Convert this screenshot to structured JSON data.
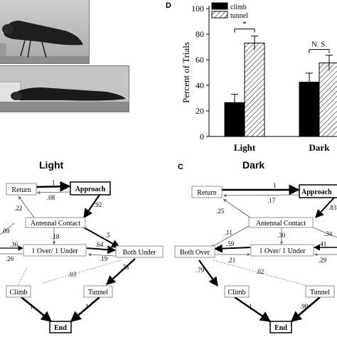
{
  "panel_letters": {
    "chart": "D",
    "dark": "C"
  },
  "panel_titles": {
    "light": "Light",
    "dark": "Dark"
  },
  "chart_data": {
    "type": "bar",
    "categories": [
      "Light",
      "Dark"
    ],
    "series": [
      {
        "name": "climb",
        "values": [
          26.5,
          42.5
        ],
        "errors": [
          6.5,
          7
        ],
        "color": "#000000"
      },
      {
        "name": "tunnel",
        "values": [
          73,
          57.5
        ],
        "errors": [
          5.5,
          6
        ],
        "color": "#ffffff",
        "pattern": "diagonal-hatch"
      }
    ],
    "ylabel": "Percent of Trials",
    "ylim": [
      0,
      100
    ],
    "yticks": [
      0,
      20,
      40,
      60,
      80,
      100
    ],
    "xtick_labels": [
      "Light",
      "Dark"
    ],
    "legend_placement": "top-left",
    "significance": [
      "*",
      "N. S."
    ]
  },
  "light_flow": {
    "nodes": {
      "return": "Return",
      "approach": "Approach",
      "antennal_contact": "Antennal Contact",
      "one_over_one_under": "1 Over/ 1 Under",
      "both_under": "Both Under",
      "climb": "Climb",
      "tunnel": "Tunnel",
      "end": "End"
    },
    "probabilities": {
      "return_to_approach": "1",
      "approach_to_return": ".08",
      "approach_to_contact": ".92",
      "contact_to_return": ".22",
      "contact_to_mixed": ".18",
      "contact_to_both_under": ".5",
      "left_top": ".09",
      "left_to_mixed": ".36",
      "mixed_to_left": ".26",
      "mixed_to_both_under": ".64",
      "both_under_to_mixed": ".19",
      "dashed_cross": ".03",
      "both_under_to_tunnel": ".78",
      "climb_to_end": "1",
      "tunnel_to_end": "1"
    }
  },
  "dark_flow": {
    "nodes": {
      "return": "Return",
      "approach": "Approach",
      "antennal_contact": "Antennal Contact",
      "both_over": "Both Over",
      "one_over_one_under": "1 Over/ 1 Under",
      "climb": "Climb",
      "tunnel": "Tunnel",
      "end": "End"
    },
    "probabilities": {
      "return_to_approach": "1",
      "approach_to_return": ".17",
      "approach_to_contact": ".83",
      "contact_to_return": ".25",
      "contact_to_both_over": ".11",
      "contact_to_mixed": ".30",
      "contact_to_right": ".34",
      "mixed_to_both_over": ".59",
      "both_over_to_mixed": ".21",
      "right_to_mixed_a": ".41",
      "right_to_mixed_b": ".29",
      "dashed_cross": ".02",
      "both_over_to_climb": ".79",
      "climb_to_end": "1",
      "tunnel_to_end": ".98"
    }
  }
}
